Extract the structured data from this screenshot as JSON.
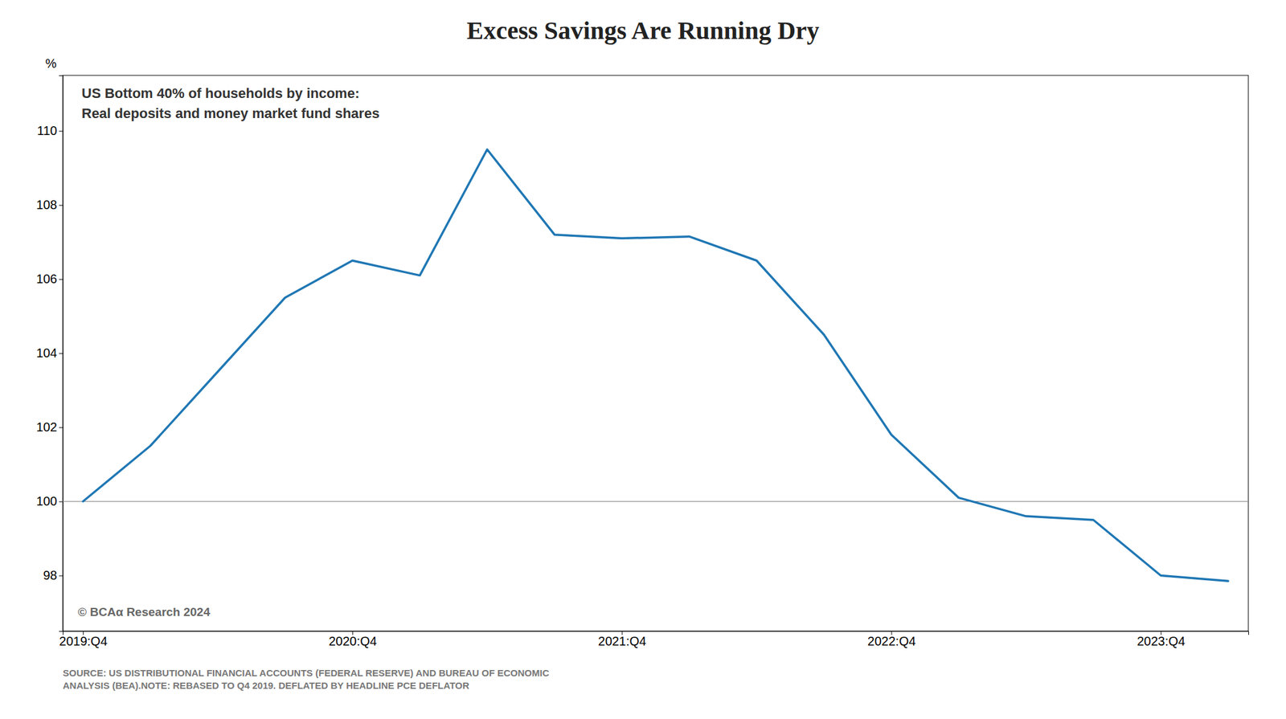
{
  "chart_data": {
    "type": "line",
    "title": "Excess Savings Are Running Dry",
    "y_label": "%",
    "annotations": [
      "US Bottom 40% of households by income:",
      "Real deposits and money market fund shares"
    ],
    "copyright": "© BCAα Research 2024",
    "source": "SOURCE: US DISTRIBUTIONAL FINANCIAL ACCOUNTS (FEDERAL RESERVE) AND BUREAU OF ECONOMIC\nANALYSIS (BEA).NOTE: REBASED TO Q4 2019. DEFLATED BY HEADLINE PCE DEFLATOR",
    "categories": [
      "2019:Q4",
      null,
      null,
      null,
      "2020:Q4",
      null,
      null,
      null,
      "2021:Q4",
      null,
      null,
      null,
      "2022:Q4",
      null,
      null,
      null,
      "2023:Q4",
      null
    ],
    "series": [
      {
        "values": [
          100.0,
          101.5,
          103.5,
          105.5,
          106.5,
          106.1,
          109.5,
          107.2,
          107.1,
          107.15,
          106.5,
          104.5,
          101.8,
          100.1,
          99.6,
          99.5,
          98.0,
          97.85
        ]
      }
    ],
    "reference_line": 100,
    "ylim": [
      96.5,
      111.5
    ],
    "yticks": [
      98,
      100,
      102,
      104,
      106,
      108,
      110
    ],
    "grid": false
  }
}
